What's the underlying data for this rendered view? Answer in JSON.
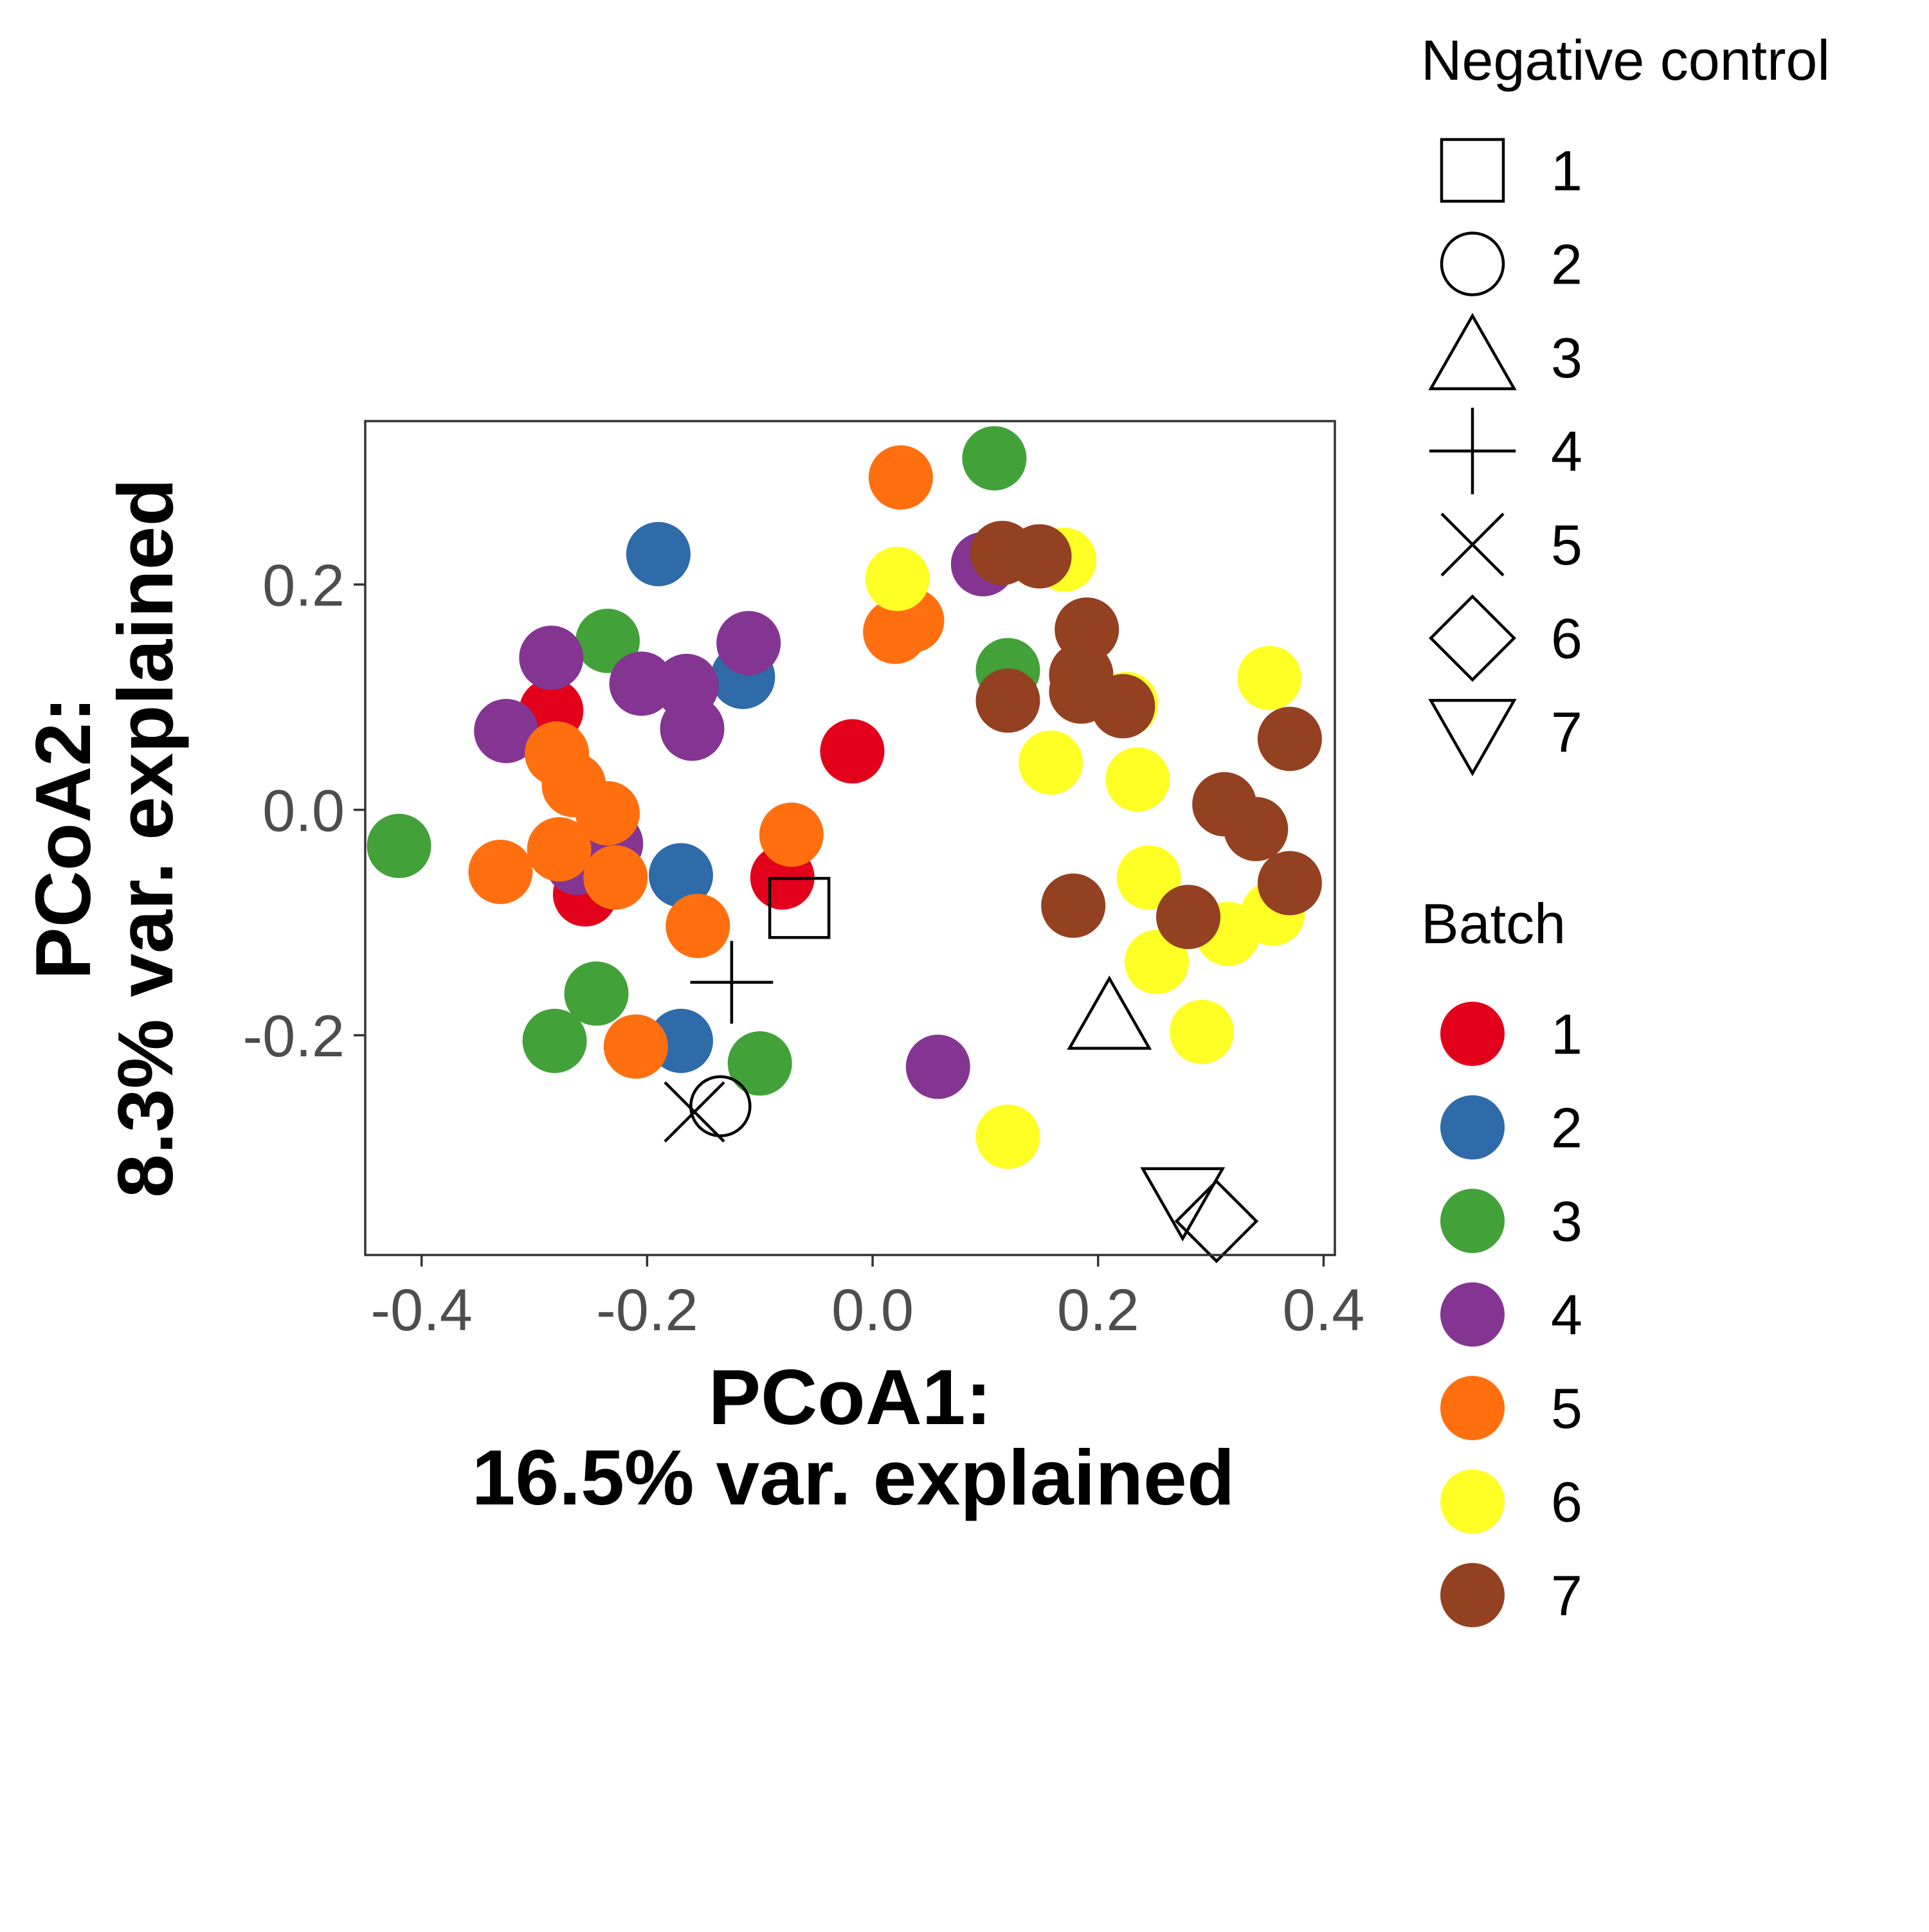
{
  "chart_data": {
    "type": "scatter",
    "xlabel": [
      "PCoA1:",
      "16.5% var. explained"
    ],
    "ylabel": [
      "PCoA2:",
      "8.3% var. explained"
    ],
    "xlim": [
      -0.45,
      0.41
    ],
    "ylim": [
      -0.395,
      0.345
    ],
    "x_ticks": [
      -0.4,
      -0.2,
      0.0,
      0.2,
      0.4
    ],
    "x_tick_labels": [
      "-0.4",
      "-0.2",
      "0.0",
      "0.2",
      "0.4"
    ],
    "y_ticks": [
      -0.2,
      0.0,
      0.2
    ],
    "y_tick_labels": [
      "-0.2",
      "0.0",
      "0.2"
    ],
    "grid": false,
    "legend_placement": "right",
    "batch_legend": {
      "title": "Batch",
      "entries": [
        {
          "label": "1",
          "color": "#E3001B"
        },
        {
          "label": "2",
          "color": "#2E6BA8"
        },
        {
          "label": "3",
          "color": "#42A139"
        },
        {
          "label": "4",
          "color": "#843592"
        },
        {
          "label": "5",
          "color": "#FF6F0F"
        },
        {
          "label": "6",
          "color": "#FFFF26"
        },
        {
          "label": "7",
          "color": "#934120"
        }
      ]
    },
    "control_legend": {
      "title": "Negative control",
      "entries": [
        {
          "label": "1",
          "shape": "square"
        },
        {
          "label": "2",
          "shape": "circle"
        },
        {
          "label": "3",
          "shape": "triangle-up"
        },
        {
          "label": "4",
          "shape": "plus"
        },
        {
          "label": "5",
          "shape": "cross"
        },
        {
          "label": "6",
          "shape": "diamond"
        },
        {
          "label": "7",
          "shape": "triangle-down"
        }
      ]
    },
    "batch_points": [
      {
        "x": -0.285,
        "y": 0.088,
        "batch": "1"
      },
      {
        "x": -0.255,
        "y": -0.075,
        "batch": "1"
      },
      {
        "x": -0.08,
        "y": -0.06,
        "batch": "1"
      },
      {
        "x": -0.018,
        "y": 0.052,
        "batch": "1"
      },
      {
        "x": -0.19,
        "y": 0.227,
        "batch": "2"
      },
      {
        "x": -0.115,
        "y": 0.118,
        "batch": "2"
      },
      {
        "x": -0.17,
        "y": -0.058,
        "batch": "2"
      },
      {
        "x": -0.17,
        "y": -0.205,
        "batch": "2"
      },
      {
        "x": -0.42,
        "y": -0.032,
        "batch": "3"
      },
      {
        "x": -0.235,
        "y": 0.15,
        "batch": "3"
      },
      {
        "x": -0.245,
        "y": -0.163,
        "batch": "3"
      },
      {
        "x": -0.282,
        "y": -0.205,
        "batch": "3"
      },
      {
        "x": -0.1,
        "y": -0.225,
        "batch": "3"
      },
      {
        "x": 0.108,
        "y": 0.312,
        "batch": "3"
      },
      {
        "x": 0.12,
        "y": 0.124,
        "batch": "3"
      },
      {
        "x": -0.285,
        "y": 0.135,
        "batch": "4"
      },
      {
        "x": -0.325,
        "y": 0.07,
        "batch": "4"
      },
      {
        "x": -0.205,
        "y": 0.112,
        "batch": "4"
      },
      {
        "x": -0.165,
        "y": 0.11,
        "batch": "4"
      },
      {
        "x": -0.16,
        "y": 0.072,
        "batch": "4"
      },
      {
        "x": -0.11,
        "y": 0.148,
        "batch": "4"
      },
      {
        "x": -0.232,
        "y": -0.03,
        "batch": "4"
      },
      {
        "x": -0.262,
        "y": -0.047,
        "batch": "4"
      },
      {
        "x": 0.058,
        "y": -0.228,
        "batch": "4"
      },
      {
        "x": 0.098,
        "y": 0.218,
        "batch": "4"
      },
      {
        "x": -0.28,
        "y": 0.05,
        "batch": "5"
      },
      {
        "x": -0.265,
        "y": 0.022,
        "batch": "5"
      },
      {
        "x": -0.235,
        "y": -0.003,
        "batch": "5"
      },
      {
        "x": -0.278,
        "y": -0.035,
        "batch": "5"
      },
      {
        "x": -0.33,
        "y": -0.055,
        "batch": "5"
      },
      {
        "x": -0.228,
        "y": -0.06,
        "batch": "5"
      },
      {
        "x": -0.155,
        "y": -0.103,
        "batch": "5"
      },
      {
        "x": -0.072,
        "y": -0.022,
        "batch": "5"
      },
      {
        "x": -0.21,
        "y": -0.21,
        "batch": "5"
      },
      {
        "x": 0.025,
        "y": 0.295,
        "batch": "5"
      },
      {
        "x": 0.035,
        "y": 0.168,
        "batch": "5"
      },
      {
        "x": 0.02,
        "y": 0.158,
        "batch": "5"
      },
      {
        "x": 0.022,
        "y": 0.205,
        "batch": "6"
      },
      {
        "x": 0.17,
        "y": 0.222,
        "batch": "6"
      },
      {
        "x": 0.158,
        "y": 0.042,
        "batch": "6"
      },
      {
        "x": 0.225,
        "y": 0.094,
        "batch": "6"
      },
      {
        "x": 0.235,
        "y": 0.027,
        "batch": "6"
      },
      {
        "x": 0.245,
        "y": -0.06,
        "batch": "6"
      },
      {
        "x": 0.252,
        "y": -0.135,
        "batch": "6"
      },
      {
        "x": 0.292,
        "y": -0.197,
        "batch": "6"
      },
      {
        "x": 0.315,
        "y": -0.11,
        "batch": "6"
      },
      {
        "x": 0.355,
        "y": -0.092,
        "batch": "6"
      },
      {
        "x": 0.352,
        "y": 0.117,
        "batch": "6"
      },
      {
        "x": 0.12,
        "y": -0.29,
        "batch": "6"
      },
      {
        "x": 0.115,
        "y": 0.228,
        "batch": "7"
      },
      {
        "x": 0.148,
        "y": 0.225,
        "batch": "7"
      },
      {
        "x": 0.19,
        "y": 0.16,
        "batch": "7"
      },
      {
        "x": 0.185,
        "y": 0.12,
        "batch": "7"
      },
      {
        "x": 0.185,
        "y": 0.105,
        "batch": "7"
      },
      {
        "x": 0.12,
        "y": 0.097,
        "batch": "7"
      },
      {
        "x": 0.222,
        "y": 0.092,
        "batch": "7"
      },
      {
        "x": 0.37,
        "y": 0.063,
        "batch": "7"
      },
      {
        "x": 0.312,
        "y": 0.005,
        "batch": "7"
      },
      {
        "x": 0.34,
        "y": -0.017,
        "batch": "7"
      },
      {
        "x": 0.37,
        "y": -0.065,
        "batch": "7"
      },
      {
        "x": 0.178,
        "y": -0.085,
        "batch": "7"
      },
      {
        "x": 0.28,
        "y": -0.095,
        "batch": "7"
      }
    ],
    "control_points": [
      {
        "x": -0.065,
        "y": -0.087,
        "control": "1"
      },
      {
        "x": -0.135,
        "y": -0.263,
        "control": "2"
      },
      {
        "x": 0.21,
        "y": -0.185,
        "control": "3"
      },
      {
        "x": -0.125,
        "y": -0.153,
        "control": "4"
      },
      {
        "x": -0.158,
        "y": -0.268,
        "control": "5"
      },
      {
        "x": 0.305,
        "y": -0.365,
        "control": "6"
      },
      {
        "x": 0.275,
        "y": -0.345,
        "control": "7"
      }
    ]
  }
}
